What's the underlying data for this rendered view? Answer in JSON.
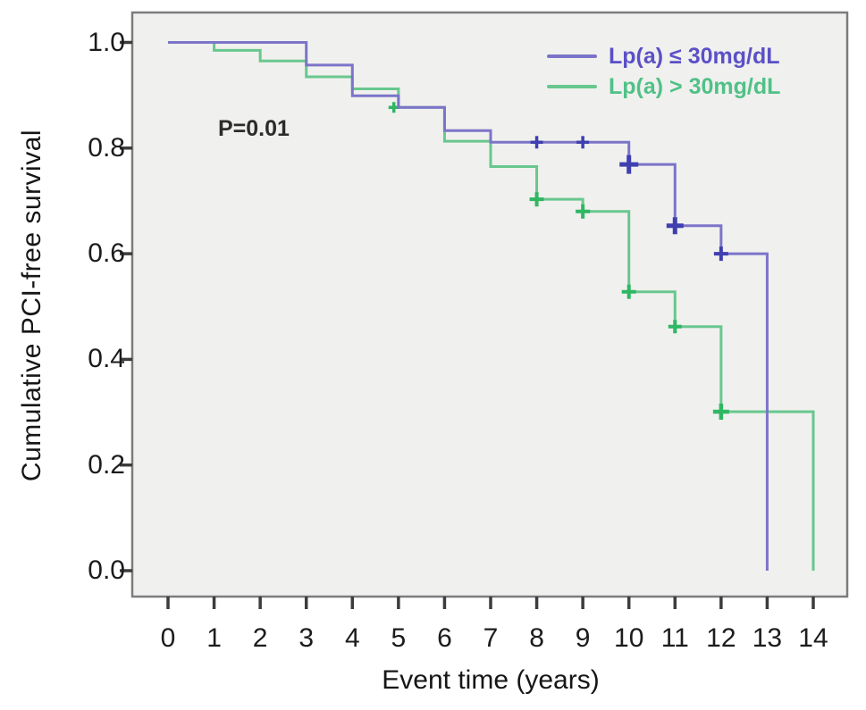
{
  "figure": {
    "p_value_label": "P=0.01",
    "x_axis_title": "Event time (years)",
    "y_axis_title": "Cumulative PCI-free survival"
  },
  "legend": {
    "position": "top-right-inside",
    "items": [
      {
        "label": "Lp(a) ≤ 30mg/dL",
        "text_color": "#5b50c7",
        "line_color": "#7b74c9"
      },
      {
        "label": "Lp(a) > 30mg/dL",
        "text_color": "#50c187",
        "line_color": "#68c78e"
      }
    ]
  },
  "chart_data": {
    "type": "line",
    "subtype": "kaplan-meier-step",
    "title": "",
    "xlabel": "Event time (years)",
    "ylabel": "Cumulative PCI-free survival",
    "xlim": [
      0,
      14
    ],
    "ylim": [
      0.0,
      1.0
    ],
    "x_ticks": [
      "0",
      "1",
      "2",
      "3",
      "4",
      "5",
      "6",
      "7",
      "8",
      "9",
      "10",
      "11",
      "12",
      "13",
      "14"
    ],
    "y_ticks": [
      "0.0",
      "0.2",
      "0.4",
      "0.6",
      "0.8",
      "1.0"
    ],
    "grid": false,
    "plot_background": "#f0f0ee",
    "plot_border_color": "#7c7c7c",
    "annotations": [
      {
        "text": "P=0.01",
        "x_year": 1.1,
        "y_survival": 0.84
      }
    ],
    "series": [
      {
        "id": "low-lpa",
        "name": "Lp(a) ≤ 30mg/dL",
        "color": "#7b74c9",
        "censor_color": "#3f3fb0",
        "steps": [
          [
            0,
            1.0
          ],
          [
            3,
            0.957
          ],
          [
            4,
            0.899
          ],
          [
            5,
            0.877
          ],
          [
            6,
            0.833
          ],
          [
            7,
            0.811
          ],
          [
            10,
            0.769
          ],
          [
            11,
            0.653
          ],
          [
            12,
            0.6
          ],
          [
            13,
            0.0
          ]
        ],
        "censored": [
          {
            "t": 8,
            "s": 0.811,
            "size": 14,
            "weight": 3.5
          },
          {
            "t": 9,
            "s": 0.811,
            "size": 14,
            "weight": 3.5
          },
          {
            "t": 10,
            "s": 0.769,
            "size": 21,
            "weight": 5
          },
          {
            "t": 11,
            "s": 0.653,
            "size": 19,
            "weight": 5
          },
          {
            "t": 12,
            "s": 0.6,
            "size": 16,
            "weight": 4
          }
        ]
      },
      {
        "id": "high-lpa",
        "name": "Lp(a) > 30mg/dL",
        "color": "#68c78e",
        "censor_color": "#2fb763",
        "steps": [
          [
            0,
            1.0
          ],
          [
            1,
            0.985
          ],
          [
            2,
            0.965
          ],
          [
            3,
            0.935
          ],
          [
            4,
            0.912
          ],
          [
            5,
            0.877
          ],
          [
            6,
            0.813
          ],
          [
            7,
            0.765
          ],
          [
            8,
            0.703
          ],
          [
            9,
            0.68
          ],
          [
            10,
            0.528
          ],
          [
            11,
            0.462
          ],
          [
            12,
            0.301
          ],
          [
            14,
            0.0
          ]
        ],
        "censored": [
          {
            "t": 4.9,
            "s": 0.877,
            "size": 12,
            "weight": 3.5
          },
          {
            "t": 8,
            "s": 0.703,
            "size": 16,
            "weight": 4
          },
          {
            "t": 9,
            "s": 0.68,
            "size": 16,
            "weight": 4
          },
          {
            "t": 10,
            "s": 0.528,
            "size": 16,
            "weight": 4
          },
          {
            "t": 11,
            "s": 0.462,
            "size": 15,
            "weight": 4
          },
          {
            "t": 12,
            "s": 0.301,
            "size": 18,
            "weight": 4.5
          }
        ]
      }
    ]
  }
}
